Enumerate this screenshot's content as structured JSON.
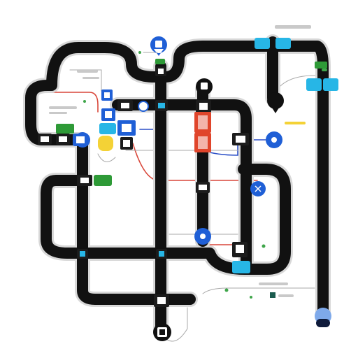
{
  "title": "",
  "colors": {
    "track": "#111111",
    "track_outline": "#d8d8d8",
    "node_dark": "#1c1c1c",
    "node_blue": "#1f5fd6",
    "node_cyan": "#27b6e6",
    "node_red": "#e0452b",
    "node_green": "#2e9a37",
    "node_yellow": "#f4d236",
    "wire_red": "#d9473a",
    "wire_blue": "#2b4fc7",
    "wire_gray": "#a9a9a9",
    "dot_green": "#3fa64a"
  },
  "icons": {
    "station": "box-icon",
    "pin": "map-pin-icon",
    "badge": "tag-icon"
  },
  "labels": {
    "top_right": "",
    "mid_right": "",
    "bottom_right": ""
  }
}
